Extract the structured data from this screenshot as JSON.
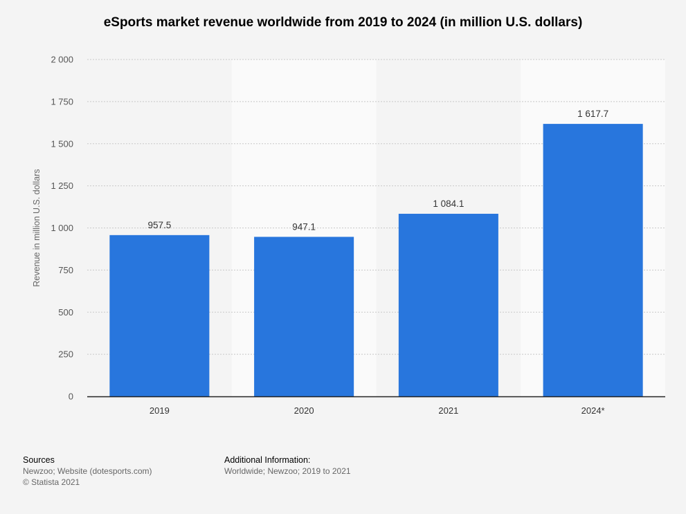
{
  "chart_data": {
    "type": "bar",
    "title": "eSports market revenue worldwide from 2019 to 2024 (in million U.S. dollars)",
    "ylabel": "Revenue in million U.S. dollars",
    "xlabel": "",
    "categories": [
      "2019",
      "2020",
      "2021",
      "2024*"
    ],
    "values": [
      957.5,
      947.1,
      1084.1,
      1617.7
    ],
    "value_labels": [
      "957.5",
      "947.1",
      "1 084.1",
      "1 617.7"
    ],
    "ylim": [
      0,
      2000
    ],
    "yticks": [
      0,
      250,
      500,
      750,
      1000,
      1250,
      1500,
      1750,
      2000
    ],
    "ytick_labels": [
      "0",
      "250",
      "500",
      "750",
      "1 000",
      "1 250",
      "1 500",
      "1 750",
      "2 000"
    ],
    "grid": true,
    "bar_color": "#2876dd",
    "alt_band_color": "#fafafa"
  },
  "footer": {
    "sources_heading": "Sources",
    "sources_line1": "Newzoo; Website (dotesports.com)",
    "sources_line2": "© Statista 2021",
    "info_heading": "Additional Information:",
    "info_text": "Worldwide; Newzoo; 2019 to 2021"
  }
}
